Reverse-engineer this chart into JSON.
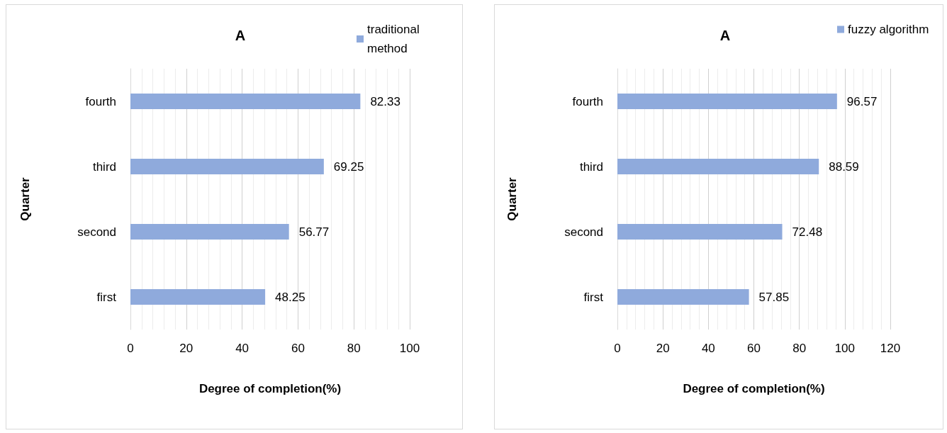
{
  "chart_data": [
    {
      "type": "bar",
      "orientation": "horizontal",
      "title": "A",
      "xlabel": "Degree of completion(%)",
      "ylabel": "Quarter",
      "categories": [
        "fourth",
        "third",
        "second",
        "first"
      ],
      "series": [
        {
          "name": "traditional method",
          "color": "#8faadc",
          "values": [
            82.33,
            69.25,
            56.77,
            48.25
          ]
        }
      ],
      "xlim": [
        0,
        100
      ],
      "xticks": [
        0,
        {
          "value": 4,
          "label": null
        },
        {
          "value": 8,
          "label": null
        },
        {
          "value": 12,
          "label": null
        },
        {
          "value": 16,
          "label": null
        },
        20,
        {
          "value": 24,
          "label": null
        },
        {
          "value": 28,
          "label": null
        },
        {
          "value": 32,
          "label": null
        },
        {
          "value": 36,
          "label": null
        },
        40,
        {
          "value": 44,
          "label": null
        },
        {
          "value": 48,
          "label": null
        },
        {
          "value": 52,
          "label": null
        },
        {
          "value": 56,
          "label": null
        },
        60,
        {
          "value": 64,
          "label": null
        },
        {
          "value": 68,
          "label": null
        },
        {
          "value": 72,
          "label": null
        },
        {
          "value": 76,
          "label": null
        },
        80,
        {
          "value": 84,
          "label": null
        },
        {
          "value": 88,
          "label": null
        },
        {
          "value": 92,
          "label": null
        },
        {
          "value": 96,
          "label": null
        },
        100
      ],
      "grid": "x",
      "legend": "top right",
      "data_labels": true
    },
    {
      "type": "bar",
      "orientation": "horizontal",
      "title": "A",
      "xlabel": "Degree of completion(%)",
      "ylabel": "Quarter",
      "categories": [
        "fourth",
        "third",
        "second",
        "first"
      ],
      "series": [
        {
          "name": "fuzzy algorithm",
          "color": "#8faadc",
          "values": [
            96.57,
            88.59,
            72.48,
            57.85
          ]
        }
      ],
      "xlim": [
        0,
        120
      ],
      "xticks": [
        0,
        {
          "value": 4,
          "label": null
        },
        {
          "value": 8,
          "label": null
        },
        {
          "value": 12,
          "label": null
        },
        {
          "value": 16,
          "label": null
        },
        20,
        {
          "value": 24,
          "label": null
        },
        {
          "value": 28,
          "label": null
        },
        {
          "value": 32,
          "label": null
        },
        {
          "value": 36,
          "label": null
        },
        40,
        {
          "value": 44,
          "label": null
        },
        {
          "value": 48,
          "label": null
        },
        {
          "value": 52,
          "label": null
        },
        {
          "value": 56,
          "label": null
        },
        60,
        {
          "value": 64,
          "label": null
        },
        {
          "value": 68,
          "label": null
        },
        {
          "value": 72,
          "label": null
        },
        {
          "value": 76,
          "label": null
        },
        80,
        {
          "value": 84,
          "label": null
        },
        {
          "value": 88,
          "label": null
        },
        {
          "value": 92,
          "label": null
        },
        {
          "value": 96,
          "label": null
        },
        100,
        {
          "value": 104,
          "label": null
        },
        {
          "value": 108,
          "label": null
        },
        {
          "value": 112,
          "label": null
        },
        {
          "value": 116,
          "label": null
        },
        120
      ],
      "grid": "x",
      "legend": "top right",
      "data_labels": true
    }
  ]
}
